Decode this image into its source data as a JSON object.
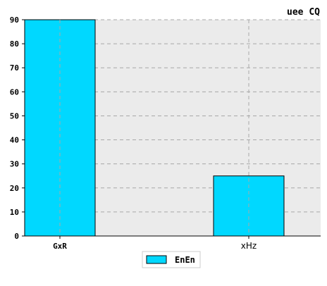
{
  "chart_data": {
    "type": "bar",
    "title": "uee CQ",
    "categories": [
      "GxR",
      "xHz"
    ],
    "series": [
      {
        "name": "EnEn",
        "values": [
          90,
          25
        ],
        "color": "#00d8ff"
      }
    ],
    "ylim": [
      0,
      90
    ],
    "yticks": [
      0,
      10,
      20,
      30,
      40,
      50,
      60,
      70,
      80,
      90
    ],
    "grid": true,
    "legend_position": "bottom-center",
    "plot_background": "#ebebeb"
  }
}
